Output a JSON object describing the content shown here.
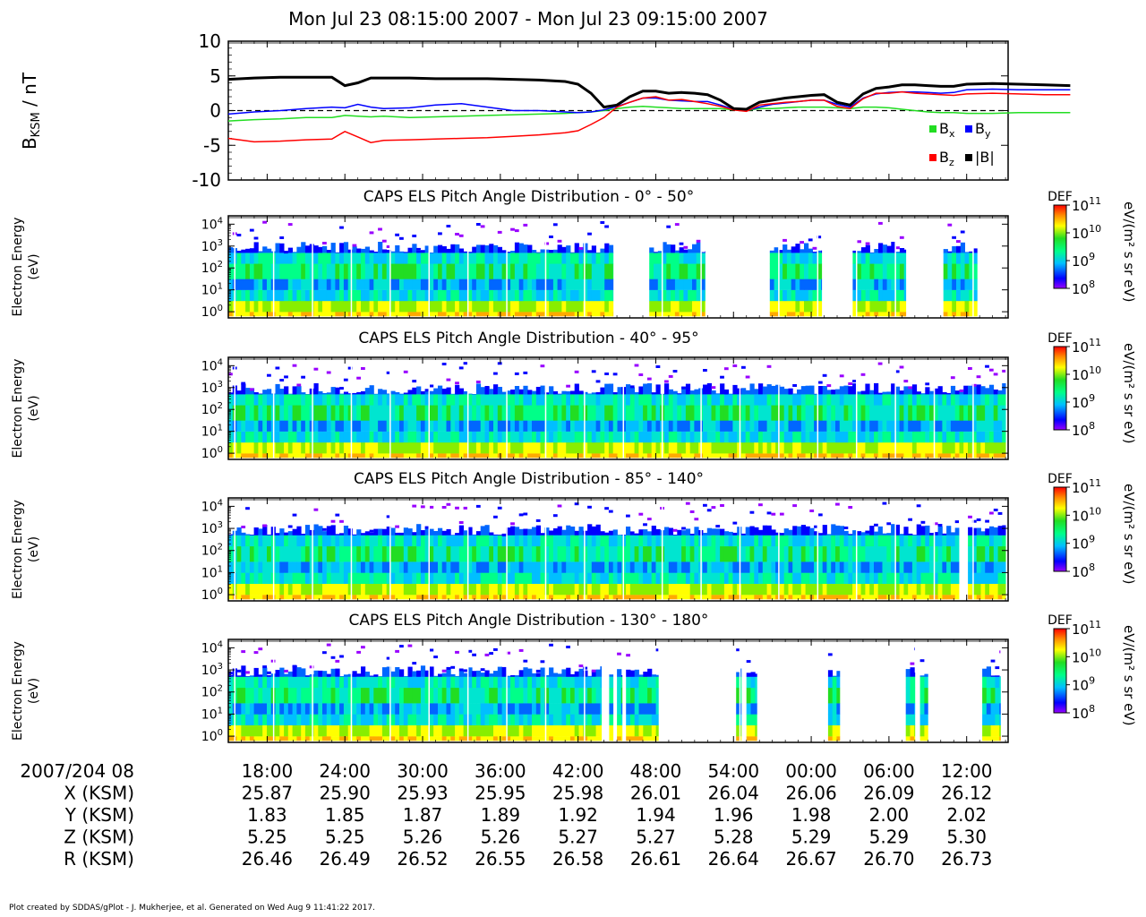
{
  "title": "Mon Jul 23 08:15:00 2007 - Mon Jul 23 09:15:00 2007",
  "footer": "Plot created by SDDAS/gPlot - J. Mukherjee, et al.  Generated on Wed Aug 9 11:41:22 2017.",
  "colors": {
    "bx": "#22dd22",
    "by": "#0000ff",
    "bz": "#ff0000",
    "bmag": "#000000"
  },
  "chart_data": [
    {
      "type": "line",
      "ylabel_main": "B",
      "ylabel_sub": "KSM",
      "ylabel_unit": " / nT",
      "ylim": [
        -10,
        10
      ],
      "yticks": [
        "10",
        "5",
        "0",
        "-5",
        "-10"
      ],
      "x": [
        15,
        17,
        19,
        21,
        23,
        24,
        25,
        26,
        27,
        29,
        31,
        33,
        35,
        37,
        39,
        41,
        42,
        43,
        44,
        45,
        46,
        47,
        48,
        49,
        50,
        51,
        52,
        53,
        54,
        55,
        56,
        57,
        58,
        59,
        60,
        61,
        62,
        63,
        64,
        65,
        66,
        67,
        68,
        69,
        70,
        71,
        72,
        74,
        76,
        78,
        80
      ],
      "series": [
        {
          "name": "B",
          "sub": "x",
          "color_key": "bx",
          "values": [
            -1.5,
            -1.3,
            -1.2,
            -1.0,
            -1.0,
            -0.7,
            -0.8,
            -0.9,
            -0.8,
            -1.0,
            -0.9,
            -0.8,
            -0.7,
            -0.6,
            -0.5,
            -0.4,
            -0.3,
            -0.2,
            0.0,
            0.3,
            0.5,
            0.6,
            0.5,
            0.4,
            0.3,
            0.3,
            0.3,
            0.3,
            0.1,
            0.0,
            0.3,
            0.3,
            0.4,
            0.5,
            0.5,
            0.5,
            0.4,
            0.3,
            0.5,
            0.5,
            0.4,
            0.2,
            0.0,
            -0.2,
            -0.3,
            -0.3,
            -0.4,
            -0.4,
            -0.3,
            -0.3,
            -0.3
          ]
        },
        {
          "name": "B",
          "sub": "y",
          "color_key": "by",
          "values": [
            -0.5,
            -0.2,
            0.0,
            0.3,
            0.5,
            0.4,
            0.9,
            0.5,
            0.3,
            0.4,
            0.8,
            1.0,
            0.5,
            0.0,
            0.0,
            -0.2,
            -0.3,
            -0.2,
            0.1,
            0.6,
            1.2,
            1.8,
            1.8,
            1.5,
            1.4,
            1.3,
            1.3,
            0.8,
            0.2,
            0.0,
            0.5,
            0.9,
            1.1,
            1.3,
            1.5,
            1.5,
            0.9,
            0.5,
            1.8,
            2.4,
            2.6,
            2.7,
            2.7,
            2.6,
            2.5,
            2.6,
            3.0,
            3.1,
            3.0,
            3.0,
            3.0
          ]
        },
        {
          "name": "B",
          "sub": "z",
          "color_key": "bz",
          "values": [
            -4.0,
            -4.5,
            -4.4,
            -4.2,
            -4.1,
            -3.0,
            -3.8,
            -4.6,
            -4.3,
            -4.2,
            -4.1,
            -4.0,
            -3.9,
            -3.7,
            -3.5,
            -3.2,
            -2.9,
            -2.0,
            -1.0,
            0.5,
            1.2,
            1.8,
            2.0,
            1.5,
            1.6,
            1.3,
            1.0,
            0.6,
            0.1,
            -0.1,
            0.8,
            1.0,
            1.2,
            1.3,
            1.5,
            1.5,
            0.6,
            0.3,
            1.7,
            2.5,
            2.5,
            2.7,
            2.5,
            2.4,
            2.3,
            2.2,
            2.4,
            2.5,
            2.4,
            2.3,
            2.3
          ]
        },
        {
          "name": "|B|",
          "sub": "",
          "color_key": "bmag",
          "values": [
            4.5,
            4.7,
            4.8,
            4.8,
            4.8,
            3.6,
            4.0,
            4.7,
            4.7,
            4.7,
            4.6,
            4.6,
            4.6,
            4.5,
            4.4,
            4.2,
            3.8,
            2.5,
            0.5,
            0.8,
            2.0,
            2.8,
            2.8,
            2.5,
            2.6,
            2.5,
            2.3,
            1.5,
            0.3,
            0.2,
            1.2,
            1.5,
            1.8,
            2.0,
            2.2,
            2.3,
            1.2,
            0.8,
            2.4,
            3.2,
            3.4,
            3.7,
            3.7,
            3.6,
            3.5,
            3.5,
            3.8,
            3.9,
            3.8,
            3.7,
            3.6
          ]
        }
      ],
      "zero_line": true
    },
    {
      "type": "heatmap",
      "title": "CAPS ELS Pitch Angle Distribution - 0° - 50°",
      "ylabel": [
        "Electron Energy",
        "(eV)"
      ],
      "data_segments": [
        [
          15,
          44.7
        ],
        [
          47.5,
          51.8
        ],
        [
          56.8,
          60.8
        ],
        [
          63.2,
          67.3
        ],
        [
          70.2,
          72.8
        ]
      ],
      "colorbar": {
        "label": "DEF",
        "unit": "eV/(m² s sr eV)",
        "range": [
          8,
          11
        ],
        "ticks": [
          8,
          9,
          10,
          11
        ]
      }
    },
    {
      "type": "heatmap",
      "title": "CAPS ELS Pitch Angle Distribution - 40° - 95°",
      "ylabel": [
        "Electron Energy",
        "(eV)"
      ],
      "data_segments": [
        [
          15,
          75
        ]
      ],
      "colorbar": {
        "label": "DEF",
        "unit": "eV/(m² s sr eV)",
        "range": [
          8,
          11
        ],
        "ticks": [
          8,
          9,
          10,
          11
        ]
      }
    },
    {
      "type": "heatmap",
      "title": "CAPS ELS Pitch Angle Distribution - 85° - 140°",
      "ylabel": [
        "Electron Energy",
        "(eV)"
      ],
      "data_segments": [
        [
          15,
          71.4
        ],
        [
          72.1,
          75
        ]
      ],
      "colorbar": {
        "label": "DEF",
        "unit": "eV/(m² s sr eV)",
        "range": [
          8,
          11
        ],
        "ticks": [
          8,
          9,
          10,
          11
        ]
      }
    },
    {
      "type": "heatmap",
      "title": "CAPS ELS Pitch Angle Distribution - 130° - 180°",
      "ylabel": [
        "Electron Energy",
        "(eV)"
      ],
      "data_segments": [
        [
          15,
          43.8
        ],
        [
          44.4,
          44.7
        ],
        [
          45,
          45.4
        ],
        [
          45.7,
          48.2
        ],
        [
          54.2,
          54.6
        ],
        [
          55,
          55.8
        ],
        [
          61.3,
          62.2
        ],
        [
          67.3,
          68
        ],
        [
          68.4,
          69
        ],
        [
          73.2,
          74.6
        ]
      ],
      "colorbar": {
        "label": "DEF",
        "unit": "eV/(m² s sr eV)",
        "range": [
          8,
          11
        ],
        "ticks": [
          8,
          9,
          10,
          11
        ]
      }
    }
  ],
  "spectrogram_y_ticks": [
    0,
    1,
    2,
    3,
    4
  ],
  "x_axis": {
    "range_minutes": [
      15,
      75.2
    ],
    "tick_minutes": [
      18,
      24,
      30,
      36,
      42,
      48,
      54,
      60,
      66,
      72
    ],
    "rows": [
      {
        "label": "2007/204 08",
        "values": [
          "18:00",
          "24:00",
          "30:00",
          "36:00",
          "42:00",
          "48:00",
          "54:00",
          "00:00",
          "06:00",
          "12:00"
        ]
      },
      {
        "label": "X (KSM)",
        "values": [
          "25.87",
          "25.90",
          "25.93",
          "25.95",
          "25.98",
          "26.01",
          "26.04",
          "26.06",
          "26.09",
          "26.12"
        ]
      },
      {
        "label": "Y (KSM)",
        "values": [
          "1.83",
          "1.85",
          "1.87",
          "1.89",
          "1.92",
          "1.94",
          "1.96",
          "1.98",
          "2.00",
          "2.02"
        ]
      },
      {
        "label": "Z (KSM)",
        "values": [
          "5.25",
          "5.25",
          "5.26",
          "5.26",
          "5.27",
          "5.27",
          "5.28",
          "5.29",
          "5.29",
          "5.30"
        ]
      },
      {
        "label": "R (KSM)",
        "values": [
          "26.46",
          "26.49",
          "26.52",
          "26.55",
          "26.58",
          "26.61",
          "26.64",
          "26.67",
          "26.70",
          "26.73"
        ]
      }
    ]
  }
}
